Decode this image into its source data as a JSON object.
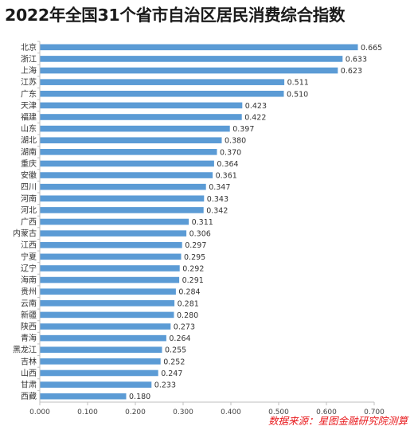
{
  "title": "2022年全国31个省市自治区居民消费综合指数",
  "source": "数据来源：星图金融研究院测算",
  "chart_data": {
    "type": "bar",
    "orientation": "horizontal",
    "title": "2022年全国31个省市自治区居民消费综合指数",
    "xlim": [
      0,
      0.7
    ],
    "x_ticks": [
      "0.000",
      "0.100",
      "0.200",
      "0.300",
      "0.400",
      "0.500",
      "0.600",
      "0.700"
    ],
    "bar_color": "#5b9bd5",
    "grid": false,
    "categories": [
      "北京",
      "浙江",
      "上海",
      "江苏",
      "广东",
      "天津",
      "福建",
      "山东",
      "湖北",
      "湖南",
      "重庆",
      "安徽",
      "四川",
      "河南",
      "河北",
      "广西",
      "内蒙古",
      "江西",
      "宁夏",
      "辽宁",
      "海南",
      "贵州",
      "云南",
      "新疆",
      "陕西",
      "青海",
      "黑龙江",
      "吉林",
      "山西",
      "甘肃",
      "西藏"
    ],
    "values": [
      0.665,
      0.633,
      0.623,
      0.511,
      0.51,
      0.423,
      0.422,
      0.397,
      0.38,
      0.37,
      0.364,
      0.361,
      0.347,
      0.343,
      0.342,
      0.311,
      0.306,
      0.297,
      0.295,
      0.292,
      0.291,
      0.284,
      0.281,
      0.28,
      0.273,
      0.264,
      0.255,
      0.252,
      0.247,
      0.233,
      0.18
    ],
    "value_labels": [
      "0.665",
      "0.633",
      "0.623",
      "0.511",
      "0.510",
      "0.423",
      "0.422",
      "0.397",
      "0.380",
      "0.370",
      "0.364",
      "0.361",
      "0.347",
      "0.343",
      "0.342",
      "0.311",
      "0.306",
      "0.297",
      "0.295",
      "0.292",
      "0.291",
      "0.284",
      "0.281",
      "0.280",
      "0.273",
      "0.264",
      "0.255",
      "0.252",
      "0.247",
      "0.233",
      "0.180"
    ]
  }
}
